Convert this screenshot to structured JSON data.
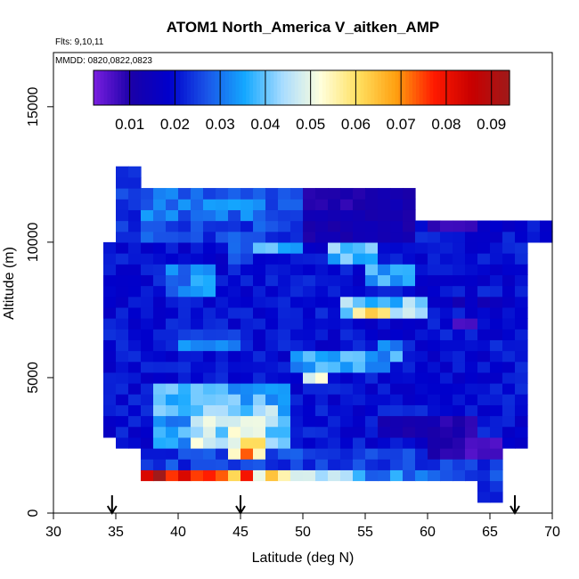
{
  "chart_data": {
    "type": "heatmap",
    "title": "ATOM1 North_America V_aitken_AMP",
    "flights_label": "Flts: 9,10,11",
    "dates_label": "MMDD: 0820,0822,0823",
    "xlabel": "Latitude (deg N)",
    "ylabel": "Altitude (m)",
    "xlim": [
      30,
      70
    ],
    "ylim": [
      0,
      17000
    ],
    "x_ticks": [
      "30",
      "35",
      "40",
      "45",
      "50",
      "55",
      "60",
      "65",
      "70"
    ],
    "y_ticks": [
      "0",
      "5000",
      "10000",
      "15000"
    ],
    "colorbar": {
      "range": [
        0.002,
        0.094
      ],
      "ticks": [
        "0.01",
        "0.02",
        "0.03",
        "0.04",
        "0.05",
        "0.06",
        "0.07",
        "0.08",
        "0.09"
      ],
      "tick_values": [
        0.01,
        0.02,
        0.03,
        0.04,
        0.05,
        0.06,
        0.07,
        0.08,
        0.09
      ],
      "colors": [
        "#7a1fe0",
        "#1a00a8",
        "#0000cc",
        "#1a55e8",
        "#14a8ff",
        "#a8dcff",
        "#ffffdd",
        "#ffe060",
        "#ffa010",
        "#ff1a00",
        "#c80000",
        "#a01a1a"
      ]
    },
    "markers_lat": [
      34.7,
      45.0,
      67.0
    ],
    "cell_size": {
      "dlat": 1.0,
      "dalt": 400
    },
    "regions": [
      {
        "lat": [
          35,
          37
        ],
        "alt": [
          10000,
          13000
        ],
        "v": 0.025
      },
      {
        "lat": [
          37,
          50
        ],
        "alt": [
          10000,
          12000
        ],
        "v": 0.025
      },
      {
        "lat": [
          50,
          59
        ],
        "alt": [
          10000,
          12000
        ],
        "v": 0.012
      },
      {
        "lat": [
          59,
          70
        ],
        "alt": [
          10000,
          11000
        ],
        "v": 0.02
      },
      {
        "lat": [
          34,
          68
        ],
        "alt": [
          3000,
          10000
        ],
        "v": 0.02
      },
      {
        "lat": [
          35,
          68
        ],
        "alt": [
          2500,
          3000
        ],
        "v": 0.02
      },
      {
        "lat": [
          37,
          66
        ],
        "alt": [
          1200,
          2500
        ],
        "v": 0.025
      },
      {
        "lat": [
          64,
          66
        ],
        "alt": [
          400,
          1200
        ],
        "v": 0.02
      }
    ],
    "features": [
      {
        "lat": [
          38,
          49
        ],
        "alt": [
          2600,
          4800
        ],
        "v": 0.036
      },
      {
        "lat": [
          41,
          48
        ],
        "alt": [
          2600,
          4000
        ],
        "v": 0.045
      },
      {
        "lat": [
          44,
          47
        ],
        "alt": [
          2200,
          3000
        ],
        "v": 0.058
      },
      {
        "lat": [
          45,
          46
        ],
        "alt": [
          2200,
          2800
        ],
        "v": 0.064
      },
      {
        "lat": [
          37,
          55
        ],
        "alt": [
          1400,
          1800
        ],
        "v": 0.07
      },
      {
        "lat": [
          37,
          41
        ],
        "alt": [
          1200,
          1600
        ],
        "v": 0.085
      },
      {
        "lat": [
          41,
          46
        ],
        "alt": [
          1200,
          1600
        ],
        "v": 0.075
      },
      {
        "lat": [
          46,
          50
        ],
        "alt": [
          1200,
          1600
        ],
        "v": 0.055
      },
      {
        "lat": [
          50,
          55
        ],
        "alt": [
          1200,
          1600
        ],
        "v": 0.042
      },
      {
        "lat": [
          55,
          60
        ],
        "alt": [
          1200,
          1600
        ],
        "v": 0.032
      },
      {
        "lat": [
          49,
          57
        ],
        "alt": [
          5200,
          6000
        ],
        "v": 0.035
      },
      {
        "lat": [
          50,
          52
        ],
        "alt": [
          4800,
          5400
        ],
        "v": 0.045
      },
      {
        "lat": [
          53,
          60
        ],
        "alt": [
          7200,
          8000
        ],
        "v": 0.04
      },
      {
        "lat": [
          54,
          57
        ],
        "alt": [
          7200,
          7800
        ],
        "v": 0.058
      },
      {
        "lat": [
          57,
          59
        ],
        "alt": [
          7200,
          7800
        ],
        "v": 0.048
      },
      {
        "lat": [
          55,
          59
        ],
        "alt": [
          8400,
          9200
        ],
        "v": 0.034
      },
      {
        "lat": [
          52,
          56
        ],
        "alt": [
          9400,
          10200
        ],
        "v": 0.038
      },
      {
        "lat": [
          39,
          43
        ],
        "alt": [
          8200,
          9200
        ],
        "v": 0.033
      },
      {
        "lat": [
          37,
          47
        ],
        "alt": [
          11000,
          12000
        ],
        "v": 0.03
      },
      {
        "lat": [
          50,
          55
        ],
        "alt": [
          11200,
          12000
        ],
        "v": 0.01
      },
      {
        "lat": [
          60,
          64
        ],
        "alt": [
          10600,
          11000
        ],
        "v": 0.008
      },
      {
        "lat": [
          62,
          64
        ],
        "alt": [
          6800,
          7400
        ],
        "v": 0.006
      },
      {
        "lat": [
          60,
          66
        ],
        "alt": [
          7600,
          8200
        ],
        "v": 0.015
      },
      {
        "lat": [
          44,
          46
        ],
        "alt": [
          9400,
          10000
        ],
        "v": 0.03
      },
      {
        "lat": [
          46,
          50
        ],
        "alt": [
          9800,
          10200
        ],
        "v": 0.035
      },
      {
        "lat": [
          40,
          45
        ],
        "alt": [
          6200,
          6800
        ],
        "v": 0.03
      },
      {
        "lat": [
          56,
          58
        ],
        "alt": [
          5800,
          6400
        ],
        "v": 0.036
      },
      {
        "lat": [
          60,
          64
        ],
        "alt": [
          2200,
          3800
        ],
        "v": 0.01
      },
      {
        "lat": [
          56,
          61
        ],
        "alt": [
          2800,
          3800
        ],
        "v": 0.012
      },
      {
        "lat": [
          63,
          66
        ],
        "alt": [
          2000,
          3000
        ],
        "v": 0.006
      },
      {
        "lat": [
          64,
          66
        ],
        "alt": [
          600,
          1200
        ],
        "v": 0.022
      }
    ]
  }
}
